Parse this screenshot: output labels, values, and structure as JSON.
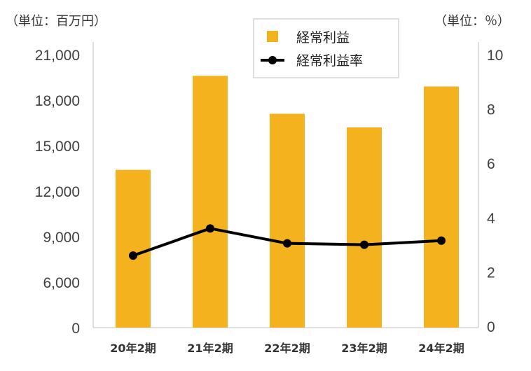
{
  "unit_left": "（単位：百万円）",
  "unit_right": "（単位：％）",
  "chart_data": {
    "type": "bar",
    "categories": [
      "20年2期",
      "21年2期",
      "22年2期",
      "23年2期",
      "24年2期"
    ],
    "series": [
      {
        "name": "経常利益",
        "type": "bar",
        "axis": "left",
        "color": "#f5b21f",
        "values": [
          13400,
          19600,
          17100,
          16200,
          18900
        ]
      },
      {
        "name": "経常利益率",
        "type": "line",
        "axis": "right",
        "color": "#000000",
        "values": [
          2.6,
          3.6,
          3.05,
          3.0,
          3.15
        ]
      }
    ],
    "y_left": {
      "ticks": [
        "0",
        "6,000",
        "9,000",
        "12,000",
        "15,000",
        "18,000",
        "21,000"
      ],
      "tick_values": [
        0,
        6000,
        9000,
        12000,
        15000,
        18000,
        21000
      ]
    },
    "y_right": {
      "ticks": [
        "0",
        "2",
        "4",
        "6",
        "8",
        "10"
      ],
      "tick_values": [
        0,
        2,
        4,
        6,
        8,
        10
      ],
      "ylim": [
        0,
        10
      ]
    },
    "legend": {
      "position": "top-center",
      "items": [
        "経常利益",
        "経常利益率"
      ]
    }
  }
}
